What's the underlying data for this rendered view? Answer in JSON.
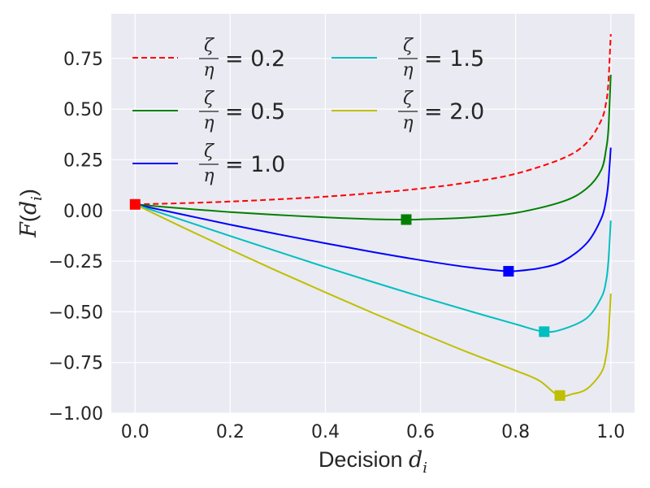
{
  "chart_data": {
    "type": "line",
    "title": "",
    "xlabel": "Decision",
    "xlabel_var": "d",
    "xlabel_sub": "i",
    "ylabel": "F(d_i)",
    "ylabel_parts": {
      "fn": "F",
      "open": "(",
      "var": "d",
      "sub": "i",
      "close": ")"
    },
    "xlim": [
      -0.05,
      1.05
    ],
    "ylim": [
      -1.0,
      0.97
    ],
    "xticks": [
      0.0,
      0.2,
      0.4,
      0.6,
      0.8,
      1.0
    ],
    "xtick_labels": [
      "0.0",
      "0.2",
      "0.4",
      "0.6",
      "0.8",
      "1.0"
    ],
    "yticks": [
      -1.0,
      -0.75,
      -0.5,
      -0.25,
      0.0,
      0.25,
      0.5,
      0.75
    ],
    "ytick_labels": [
      "−1.00",
      "−0.75",
      "−0.50",
      "−0.25",
      "0.00",
      "0.25",
      "0.50",
      "0.75"
    ],
    "grid": true,
    "legend_position": "top-left",
    "legend_columns": 2,
    "start_marker": {
      "x": 0.0,
      "y": 0.03,
      "color": "#ff0000",
      "shape": "square"
    },
    "series": [
      {
        "name": "ζ/η = 0.2",
        "ratio": "0.2",
        "color": "#ff0000",
        "dash": true,
        "x": [
          0,
          0.1,
          0.2,
          0.3,
          0.4,
          0.5,
          0.6,
          0.7,
          0.8,
          0.9,
          0.95,
          0.98,
          0.99,
          0.995,
          1.0
        ],
        "y": [
          0.03,
          0.036,
          0.044,
          0.055,
          0.068,
          0.086,
          0.108,
          0.138,
          0.181,
          0.258,
          0.335,
          0.445,
          0.53,
          0.63,
          0.87
        ],
        "min_marker": null
      },
      {
        "name": "ζ/η = 0.5",
        "ratio": "0.5",
        "color": "#008000",
        "dash": false,
        "x": [
          0,
          0.1,
          0.2,
          0.3,
          0.4,
          0.5,
          0.57,
          0.6,
          0.7,
          0.8,
          0.9,
          0.95,
          0.98,
          0.99,
          0.995,
          1.0
        ],
        "y": [
          0.03,
          0.01,
          -0.008,
          -0.022,
          -0.034,
          -0.043,
          -0.045,
          -0.044,
          -0.035,
          -0.012,
          0.045,
          0.11,
          0.2,
          0.3,
          0.4,
          0.67
        ],
        "min_marker": {
          "x": 0.57,
          "y": -0.045
        }
      },
      {
        "name": "ζ/η = 1.0",
        "ratio": "1.0",
        "color": "#0000ff",
        "dash": false,
        "x": [
          0,
          0.1,
          0.2,
          0.3,
          0.4,
          0.5,
          0.6,
          0.7,
          0.78,
          0.8,
          0.85,
          0.9,
          0.95,
          0.98,
          0.99,
          0.995,
          1.0
        ],
        "y": [
          0.03,
          -0.02,
          -0.07,
          -0.117,
          -0.162,
          -0.205,
          -0.245,
          -0.28,
          -0.3,
          -0.299,
          -0.285,
          -0.25,
          -0.16,
          -0.04,
          0.05,
          0.14,
          0.31
        ],
        "min_marker": {
          "x": 0.785,
          "y": -0.3
        }
      },
      {
        "name": "ζ/η = 1.5",
        "ratio": "1.5",
        "color": "#00bfbf",
        "dash": false,
        "x": [
          0,
          0.1,
          0.2,
          0.3,
          0.4,
          0.5,
          0.6,
          0.7,
          0.8,
          0.86,
          0.9,
          0.95,
          0.98,
          0.99,
          0.995,
          1.0
        ],
        "y": [
          0.03,
          -0.048,
          -0.126,
          -0.203,
          -0.279,
          -0.353,
          -0.425,
          -0.494,
          -0.561,
          -0.598,
          -0.585,
          -0.53,
          -0.43,
          -0.35,
          -0.25,
          -0.05
        ],
        "min_marker": {
          "x": 0.86,
          "y": -0.598
        }
      },
      {
        "name": "ζ/η = 2.0",
        "ratio": "2.0",
        "color": "#bfbf00",
        "dash": false,
        "x": [
          0,
          0.1,
          0.2,
          0.3,
          0.4,
          0.5,
          0.6,
          0.7,
          0.8,
          0.85,
          0.89,
          0.92,
          0.95,
          0.98,
          0.99,
          0.995,
          1.0
        ],
        "y": [
          0.03,
          -0.083,
          -0.193,
          -0.3,
          -0.404,
          -0.506,
          -0.604,
          -0.7,
          -0.79,
          -0.84,
          -0.913,
          -0.905,
          -0.88,
          -0.8,
          -0.72,
          -0.62,
          -0.41
        ],
        "min_marker": {
          "x": 0.893,
          "y": -0.913
        }
      }
    ]
  }
}
